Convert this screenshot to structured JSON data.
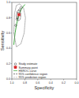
{
  "chart_data": {
    "type": "sroc",
    "xlabel": "Specificity",
    "ylabel": "Sensitivity",
    "xlim": [
      1,
      0
    ],
    "ylim": [
      0,
      1
    ],
    "xticks": [
      {
        "value": 1,
        "label": "1.0"
      },
      {
        "value": 0.8,
        "label": "0.8"
      },
      {
        "value": 0.6,
        "label": "0.6"
      },
      {
        "value": 0.4,
        "label": "0.4"
      },
      {
        "value": 0.2,
        "label": "0.2"
      },
      {
        "value": 0,
        "label": "0.0"
      }
    ],
    "yticks": [
      {
        "value": 0,
        "label": "0.0"
      },
      {
        "value": 0.2,
        "label": "0.2"
      },
      {
        "value": 0.4,
        "label": "0.4"
      },
      {
        "value": 0.6,
        "label": "0.6"
      },
      {
        "value": 0.8,
        "label": "0.8"
      },
      {
        "value": 1,
        "label": "1.0"
      }
    ],
    "legend": "bottom-left",
    "series": [
      {
        "name": "Study estimate",
        "type": "scatter",
        "marker": "circle",
        "color": "#333333",
        "x": [
          0.94,
          0.92,
          0.9,
          0.88,
          0.91,
          0.86
        ],
        "values": [
          0.7,
          0.78,
          0.86,
          0.9,
          0.8,
          0.93
        ]
      },
      {
        "name": "Summary point",
        "type": "scatter",
        "marker": "square",
        "color": "#d62728",
        "x": [
          0.89
        ],
        "values": [
          0.84
        ]
      },
      {
        "name": "HSROC curve",
        "type": "line",
        "line_style": "solid",
        "color": "#2ca02c",
        "x": [
          0.97,
          0.95,
          0.93,
          0.91,
          0.89,
          0.86,
          0.83,
          0.8
        ],
        "values": [
          0.45,
          0.6,
          0.7,
          0.78,
          0.84,
          0.9,
          0.94,
          0.97
        ]
      },
      {
        "name": "95% confidence region",
        "type": "line",
        "line_style": "dashed",
        "color": "#444444",
        "x": [
          0.93,
          0.92,
          0.9,
          0.87,
          0.86,
          0.87,
          0.89,
          0.92,
          0.93
        ],
        "values": [
          0.83,
          0.88,
          0.9,
          0.89,
          0.84,
          0.78,
          0.76,
          0.78,
          0.83
        ]
      },
      {
        "name": "95% prediction region",
        "type": "line",
        "line_style": "dotted",
        "color": "#777777",
        "x": [
          0.97,
          0.96,
          0.93,
          0.88,
          0.82,
          0.79,
          0.81,
          0.86,
          0.93,
          0.97
        ],
        "values": [
          0.6,
          0.85,
          0.96,
          0.98,
          0.93,
          0.8,
          0.6,
          0.46,
          0.42,
          0.6
        ]
      }
    ]
  }
}
